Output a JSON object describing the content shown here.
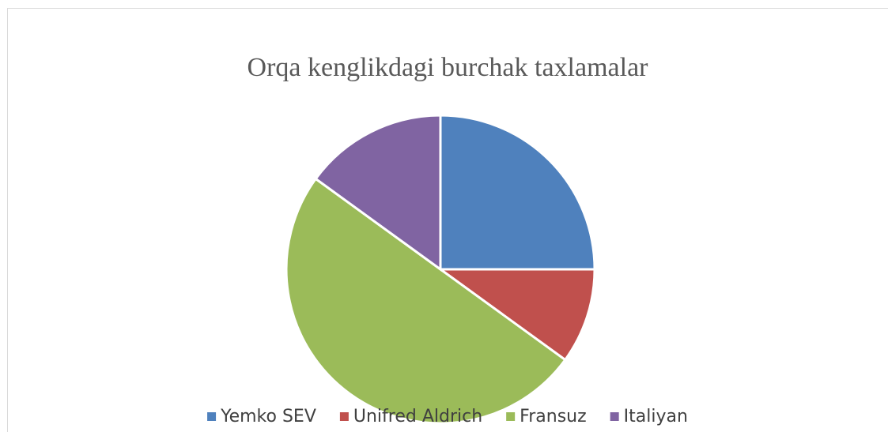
{
  "chart_data": {
    "type": "pie",
    "title": "Orqa kenglikdagi burchak taxlamalar",
    "categories": [
      "Yemko SEV",
      "Unifred Aldrich",
      "Fransuz",
      "Italiyan"
    ],
    "values": [
      25,
      10,
      50,
      15
    ],
    "colors": [
      "#4f81bd",
      "#c0504d",
      "#9bbb59",
      "#8064a2"
    ],
    "legend": "bottom"
  }
}
